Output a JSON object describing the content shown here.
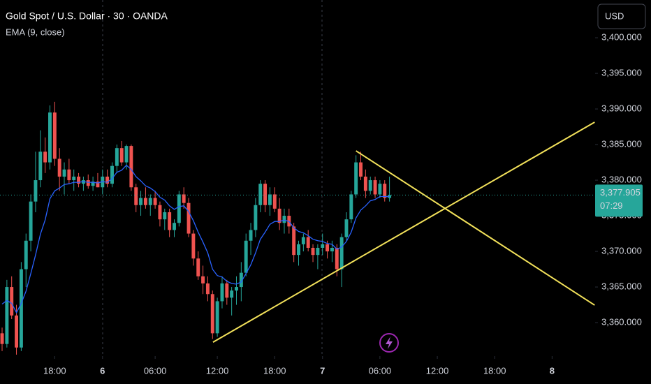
{
  "chart_data": {
    "type": "candlestick",
    "title": "Gold Spot / U.S. Dollar · 30 · OANDA",
    "currency": "USD",
    "up_color": "#26a69a",
    "down_color": "#ef5350",
    "open": [
      3358.5,
      3357.0,
      3365.0,
      3361.0,
      3356.5,
      3367.5,
      3371.5,
      3377.0,
      3380.0,
      3384.0,
      3382.5,
      3389.5,
      3383.0,
      3380.5,
      3381.5,
      3380.0,
      3380.5,
      3379.5,
      3380.0,
      3379.2,
      3379.8,
      3379.0,
      3380.5,
      3379.5,
      3382.0,
      3384.5,
      3382.5,
      3384.8,
      3379.0,
      3376.5,
      3377.5,
      3376.5,
      3377.5,
      3376.5,
      3374.5,
      3375.5,
      3373.0,
      3374.0,
      3378.0,
      3376.8,
      3372.5,
      3369.0,
      3366.5,
      3365.5,
      3364.0,
      3358.5,
      3363.0,
      3365.5,
      3363.5,
      3364.5,
      3365.0,
      3367.0,
      3371.5,
      3373.0,
      3376.5,
      3379.5,
      3376.5,
      3378.0,
      3376.0,
      3374.0,
      3375.0,
      3373.5,
      3369.5,
      3371.0,
      3372.0,
      3370.5,
      3369.5,
      3370.5,
      3371.0,
      3370.0,
      3370.5,
      3367.5,
      3372.0,
      3374.5,
      3378.0,
      3382.5,
      3380.5,
      3378.5,
      3380.0,
      3378.0,
      3379.5,
      3377.5
    ],
    "high": [
      3359.3,
      3366.0,
      3366.5,
      3362.5,
      3368.5,
      3372.5,
      3378.0,
      3384.0,
      3387.0,
      3386.0,
      3390.5,
      3391.0,
      3384.5,
      3382.5,
      3383.0,
      3381.5,
      3381.0,
      3380.5,
      3380.8,
      3380.5,
      3381.0,
      3381.5,
      3381.5,
      3382.5,
      3385.0,
      3385.5,
      3385.0,
      3385.0,
      3379.5,
      3378.5,
      3379.0,
      3378.0,
      3378.5,
      3377.0,
      3376.0,
      3376.0,
      3374.5,
      3378.5,
      3379.0,
      3377.5,
      3373.0,
      3370.0,
      3368.0,
      3366.5,
      3364.5,
      3363.5,
      3366.5,
      3366.0,
      3365.0,
      3366.5,
      3368.5,
      3372.5,
      3374.0,
      3377.5,
      3380.0,
      3380.0,
      3379.0,
      3379.0,
      3377.5,
      3376.0,
      3376.0,
      3374.0,
      3371.5,
      3372.5,
      3373.0,
      3371.0,
      3371.0,
      3372.5,
      3371.5,
      3371.5,
      3371.0,
      3372.5,
      3375.5,
      3378.5,
      3383.5,
      3384.0,
      3381.5,
      3380.5,
      3380.5,
      3380.0,
      3380.0,
      3380.5
    ],
    "low": [
      3356.0,
      3356.5,
      3360.5,
      3355.5,
      3356.0,
      3365.0,
      3370.0,
      3375.5,
      3379.0,
      3381.0,
      3381.5,
      3382.0,
      3378.5,
      3378.0,
      3379.5,
      3378.5,
      3379.0,
      3378.5,
      3378.8,
      3378.5,
      3379.0,
      3378.0,
      3379.0,
      3379.0,
      3381.0,
      3382.0,
      3381.5,
      3378.5,
      3375.5,
      3375.0,
      3376.0,
      3375.0,
      3376.0,
      3373.5,
      3373.0,
      3372.0,
      3372.0,
      3373.5,
      3376.0,
      3372.0,
      3368.0,
      3366.0,
      3364.0,
      3363.0,
      3357.7,
      3358.0,
      3362.0,
      3362.5,
      3361.0,
      3362.5,
      3363.0,
      3366.5,
      3369.5,
      3372.0,
      3375.5,
      3375.5,
      3375.0,
      3375.5,
      3373.0,
      3372.5,
      3372.5,
      3368.5,
      3368.0,
      3370.0,
      3370.0,
      3368.5,
      3367.5,
      3369.5,
      3369.0,
      3368.5,
      3366.5,
      3365.0,
      3371.5,
      3374.0,
      3377.5,
      3380.0,
      3377.5,
      3378.0,
      3377.5,
      3377.5,
      3377.0,
      3377.0
    ],
    "close": [
      3357.0,
      3365.0,
      3361.0,
      3356.5,
      3367.5,
      3371.5,
      3377.0,
      3380.0,
      3384.0,
      3382.5,
      3389.5,
      3383.0,
      3380.5,
      3381.5,
      3380.0,
      3380.5,
      3379.5,
      3380.0,
      3379.2,
      3379.8,
      3379.0,
      3380.5,
      3379.5,
      3382.0,
      3384.5,
      3382.5,
      3384.8,
      3379.0,
      3376.5,
      3377.5,
      3376.5,
      3377.5,
      3376.5,
      3374.5,
      3375.5,
      3373.0,
      3374.0,
      3378.0,
      3376.8,
      3372.5,
      3369.0,
      3366.5,
      3365.5,
      3364.0,
      3358.5,
      3363.0,
      3365.5,
      3363.5,
      3364.5,
      3365.0,
      3367.0,
      3371.5,
      3373.0,
      3376.5,
      3379.5,
      3376.5,
      3378.0,
      3376.0,
      3374.0,
      3375.0,
      3373.5,
      3369.5,
      3371.0,
      3372.0,
      3370.5,
      3369.5,
      3370.5,
      3371.0,
      3370.0,
      3370.5,
      3367.5,
      3372.0,
      3374.5,
      3378.0,
      3382.5,
      3380.5,
      3378.5,
      3380.0,
      3378.0,
      3379.5,
      3377.5,
      3377.905
    ],
    "ema": {
      "name": "EMA (9, close)",
      "color": "#2962ff",
      "values": [
        3362.6,
        3363.1,
        3362.7,
        3361.4,
        3362.7,
        3364.4,
        3366.9,
        3369.5,
        3372.4,
        3374.4,
        3377.4,
        3378.5,
        3378.9,
        3379.4,
        3379.5,
        3379.7,
        3379.7,
        3379.8,
        3379.7,
        3379.7,
        3379.6,
        3379.8,
        3379.7,
        3380.2,
        3381.1,
        3381.4,
        3382.1,
        3381.5,
        3380.5,
        3379.9,
        3379.2,
        3378.9,
        3378.4,
        3377.6,
        3377.2,
        3376.4,
        3375.9,
        3376.3,
        3376.4,
        3375.6,
        3374.3,
        3372.7,
        3371.3,
        3369.8,
        3367.5,
        3366.6,
        3366.4,
        3365.8,
        3365.5,
        3365.4,
        3365.7,
        3366.9,
        3368.1,
        3369.8,
        3371.7,
        3372.7,
        3373.8,
        3374.2,
        3374.2,
        3374.4,
        3374.2,
        3373.3,
        3372.8,
        3372.6,
        3372.2,
        3371.7,
        3371.5,
        3371.4,
        3371.1,
        3371.0,
        3370.3,
        3370.6,
        3371.4,
        3372.7,
        3374.7,
        3375.8,
        3376.4,
        3377.1,
        3377.3,
        3377.7,
        3377.7,
        3377.7
      ]
    },
    "xlim": [
      -0.44,
      124
    ],
    "xticks": [
      {
        "value": 11,
        "label": "18:00"
      },
      {
        "value": 21,
        "label": "6"
      },
      {
        "value": 32,
        "label": "06:00"
      },
      {
        "value": 45,
        "label": "12:00"
      },
      {
        "value": 57,
        "label": "18:00"
      },
      {
        "value": 67,
        "label": "7"
      },
      {
        "value": 79,
        "label": "06:00"
      },
      {
        "value": 91,
        "label": "12:00"
      },
      {
        "value": 103,
        "label": "18:00"
      },
      {
        "value": 115,
        "label": "8"
      }
    ],
    "ylim": [
      3355.3,
      3405.3
    ],
    "yticks": [
      {
        "value": 3360,
        "label": "3,360.000"
      },
      {
        "value": 3365,
        "label": "3,365.000"
      },
      {
        "value": 3370,
        "label": "3,370.000"
      },
      {
        "value": 3375,
        "label": "3,375.000"
      },
      {
        "value": 3380,
        "label": "3,380.000"
      },
      {
        "value": 3385,
        "label": "3,385.000"
      },
      {
        "value": 3390,
        "label": "3,390.000"
      },
      {
        "value": 3395,
        "label": "3,395.000"
      },
      {
        "value": 3400,
        "label": "3,400.000"
      }
    ],
    "trendlines": {
      "color": "#f2e15a",
      "lines": [
        {
          "x": [
            44.1,
            123.9
          ],
          "y": [
            3357.25,
            3388.14
          ]
        },
        {
          "x": [
            74,
            123.9
          ],
          "y": [
            3384.12,
            3362.45
          ]
        }
      ]
    },
    "last_price": {
      "value": 3377.905,
      "label": "3,377.905"
    },
    "countdown": "07:29"
  }
}
